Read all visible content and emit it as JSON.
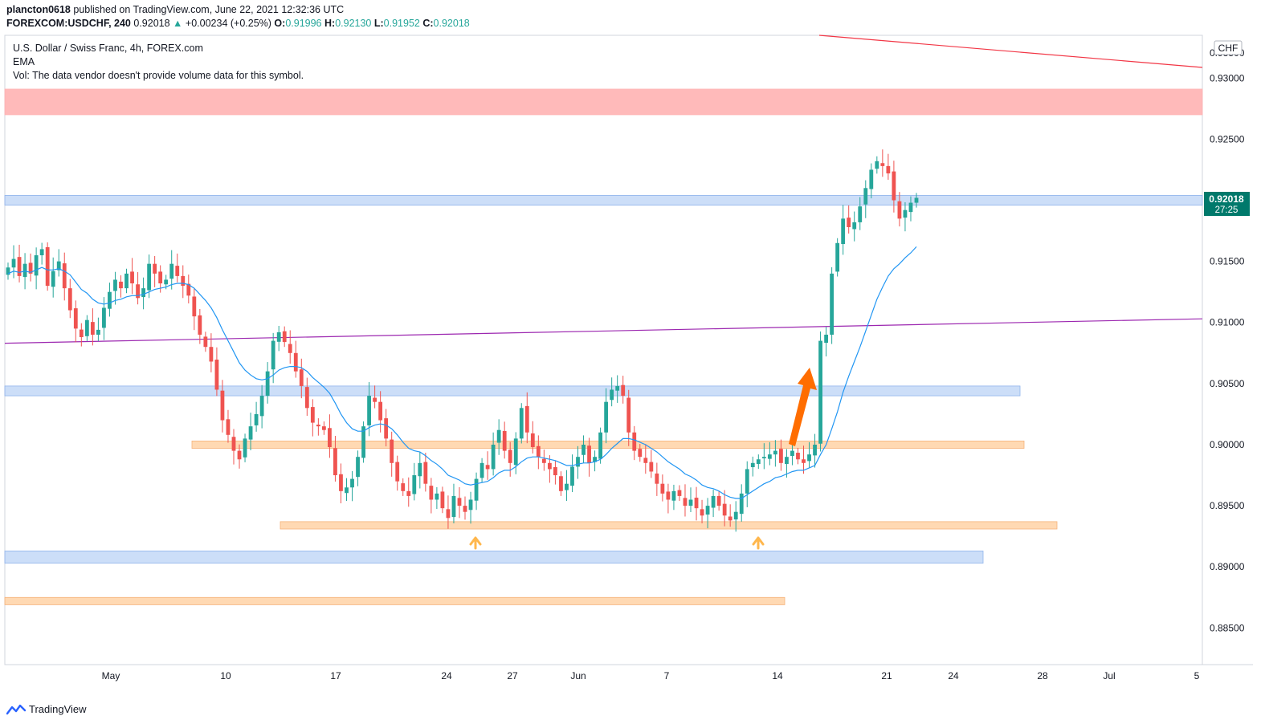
{
  "header": {
    "publisher": "plancton0618",
    "published_text": "published on TradingView.com, June 22, 2021 12:32:36 UTC",
    "symbol": "FOREXCOM:USDCHF, 240",
    "last": "0.92018",
    "change_arrow": "▲",
    "change": "+0.00234 (+0.25%)",
    "o_label": "O:",
    "o_value": "0.91996",
    "h_label": "H:",
    "h_value": "0.92130",
    "l_label": "L:",
    "l_value": "0.91952",
    "c_label": "C:",
    "c_value": "0.92018"
  },
  "legend": {
    "title": "U.S. Dollar / Swiss Franc, 4h, FOREX.com",
    "ema": "EMA",
    "vol": "Vol: The data vendor doesn't provide volume data for this symbol."
  },
  "footer": {
    "brand": "TradingView",
    "logo_icon": "tradingview-logo-icon"
  },
  "colors": {
    "up": "#26a69a",
    "down": "#ef5350",
    "ema": "#2196f3",
    "support_zone": "#ffcc99",
    "blue_zone": "#bbd3f5",
    "red_zone": "#ffb3b3",
    "trendline_red": "#f23645",
    "trendline_purple": "#9c27b0",
    "arrow_orange": "#ff6d00",
    "small_arrow": "#ffb74d",
    "price_tag": "#00796b"
  },
  "chart_data": {
    "type": "candlestick",
    "title": "U.S. Dollar / Swiss Franc, 4h, FOREX.com",
    "currency_label": "CHF",
    "ylim": [
      0.882,
      0.9335
    ],
    "y_ticks": [
      "0.93000",
      "0.92500",
      "0.92000",
      "0.91500",
      "0.91000",
      "0.90500",
      "0.90000",
      "0.89500",
      "0.89000",
      "0.88500"
    ],
    "y_tick_values": [
      0.93,
      0.925,
      0.92,
      0.915,
      0.91,
      0.905,
      0.9,
      0.895,
      0.89,
      0.885
    ],
    "top_partial_tick": "0.93500",
    "x_ticks": [
      "May",
      "10",
      "17",
      "24",
      "27",
      "Jun",
      "7",
      "14",
      "21",
      "24",
      "28",
      "Jul",
      "5"
    ],
    "current_price": "0.92018",
    "countdown": "27:25",
    "zones": [
      {
        "kind": "resistance",
        "low": 0.927,
        "high": 0.9291
      },
      {
        "kind": "blue",
        "low": 0.9196,
        "high": 0.9204
      },
      {
        "kind": "blue",
        "low": 0.904,
        "high": 0.9048
      },
      {
        "kind": "orange",
        "low": 0.8997,
        "high": 0.9003
      },
      {
        "kind": "orange",
        "low": 0.8931,
        "high": 0.8937
      },
      {
        "kind": "blue",
        "low": 0.8903,
        "high": 0.8913
      },
      {
        "kind": "orange",
        "low": 0.8869,
        "high": 0.8875
      }
    ],
    "trendlines": [
      {
        "name": "red",
        "y_start": 0.9367,
        "y_end": 0.9359
      },
      {
        "name": "purple",
        "y_start": 0.9083,
        "y_end": 0.9103
      }
    ],
    "candles_close": [
      0.9145,
      0.9152,
      0.9138,
      0.9148,
      0.914,
      0.9155,
      0.916,
      0.913,
      0.9142,
      0.915,
      0.9128,
      0.911,
      0.9095,
      0.9088,
      0.9102,
      0.909,
      0.9094,
      0.9112,
      0.9125,
      0.9135,
      0.9128,
      0.914,
      0.9132,
      0.912,
      0.9128,
      0.9148,
      0.914,
      0.9132,
      0.9135,
      0.9148,
      0.9138,
      0.913,
      0.9122,
      0.9105,
      0.909,
      0.908,
      0.9068,
      0.9045,
      0.902,
      0.9008,
      0.8995,
      0.8988,
      0.9005,
      0.9015,
      0.9025,
      0.904,
      0.906,
      0.9085,
      0.9092,
      0.9084,
      0.9075,
      0.906,
      0.9048,
      0.903,
      0.9018,
      0.9015,
      0.9012,
      0.8998,
      0.8975,
      0.8962,
      0.8965,
      0.8972,
      0.899,
      0.9015,
      0.904,
      0.9035,
      0.902,
      0.9005,
      0.8985,
      0.897,
      0.8962,
      0.8958,
      0.8975,
      0.8985,
      0.8968,
      0.8955,
      0.896,
      0.8948,
      0.894,
      0.8958,
      0.895,
      0.8945,
      0.8955,
      0.8972,
      0.8985,
      0.898,
      0.9,
      0.9012,
      0.8995,
      0.8985,
      0.9005,
      0.903,
      0.901,
      0.8998,
      0.899,
      0.8985,
      0.898,
      0.8975,
      0.8962,
      0.8968,
      0.8982,
      0.899,
      0.9,
      0.8985,
      0.899,
      0.901,
      0.9035,
      0.9045,
      0.9048,
      0.904,
      0.901,
      0.8995,
      0.899,
      0.8985,
      0.8978,
      0.8968,
      0.896,
      0.8955,
      0.8962,
      0.8958,
      0.895,
      0.8955,
      0.8948,
      0.8942,
      0.895,
      0.8958,
      0.895,
      0.8942,
      0.8938,
      0.8945,
      0.896,
      0.898,
      0.8985,
      0.8988,
      0.899,
      0.8992,
      0.8995,
      0.8985,
      0.899,
      0.8995,
      0.8988,
      0.8985,
      0.8992,
      0.9,
      0.9085,
      0.909,
      0.914,
      0.9165,
      0.9185,
      0.9178,
      0.9182,
      0.9195,
      0.921,
      0.9225,
      0.9232,
      0.9228,
      0.9222,
      0.92,
      0.9185,
      0.9192,
      0.9198,
      0.9202
    ],
    "ema_close": [
      0.914,
      0.9142,
      0.9141,
      0.9142,
      0.9141,
      0.9143,
      0.9145,
      0.9143,
      0.9143,
      0.9144,
      0.9142,
      0.9139,
      0.9133,
      0.9127,
      0.9124,
      0.9119,
      0.9116,
      0.9115,
      0.9116,
      0.9118,
      0.9119,
      0.9121,
      0.9122,
      0.9122,
      0.9123,
      0.9125,
      0.9127,
      0.9128,
      0.9129,
      0.9131,
      0.9132,
      0.9132,
      0.9131,
      0.9128,
      0.9123,
      0.9118,
      0.9112,
      0.9104,
      0.9094,
      0.9085,
      0.9076,
      0.9067,
      0.9061,
      0.9057,
      0.9054,
      0.9053,
      0.9054,
      0.9057,
      0.9061,
      0.9063,
      0.9064,
      0.9064,
      0.9063,
      0.906,
      0.9055,
      0.9051,
      0.9047,
      0.9042,
      0.9034,
      0.9025,
      0.9018,
      0.9013,
      0.9011,
      0.9011,
      0.9014,
      0.9016,
      0.9017,
      0.9016,
      0.9013,
      0.9008,
      0.9002,
      0.8997,
      0.8995,
      0.8994,
      0.8991,
      0.8987,
      0.8984,
      0.898,
      0.8975,
      0.8973,
      0.8971,
      0.8968,
      0.8967,
      0.8968,
      0.8969,
      0.897,
      0.8973,
      0.8977,
      0.8979,
      0.8979,
      0.8982,
      0.8986,
      0.8989,
      0.899,
      0.899,
      0.8989,
      0.8988,
      0.8987,
      0.8985,
      0.8983,
      0.8983,
      0.8984,
      0.8985,
      0.8985,
      0.8986,
      0.8988,
      0.8992,
      0.8997,
      0.9001,
      0.9005,
      0.9005,
      0.9004,
      0.9002,
      0.9,
      0.8997,
      0.8994,
      0.899,
      0.8986,
      0.8983,
      0.898,
      0.8976,
      0.8974,
      0.8971,
      0.8967,
      0.8965,
      0.8964,
      0.8962,
      0.8959,
      0.8957,
      0.8956,
      0.8956,
      0.8959,
      0.8962,
      0.8965,
      0.8968,
      0.897,
      0.8973,
      0.8974,
      0.8976,
      0.8978,
      0.8979,
      0.8979,
      0.8981,
      0.8983,
      0.8992,
      0.9,
      0.9013,
      0.9027,
      0.9043,
      0.9056,
      0.9068,
      0.908,
      0.9093,
      0.9106,
      0.9119,
      0.9129,
      0.9138,
      0.9144,
      0.9148,
      0.9153,
      0.9157,
      0.9162
    ]
  }
}
